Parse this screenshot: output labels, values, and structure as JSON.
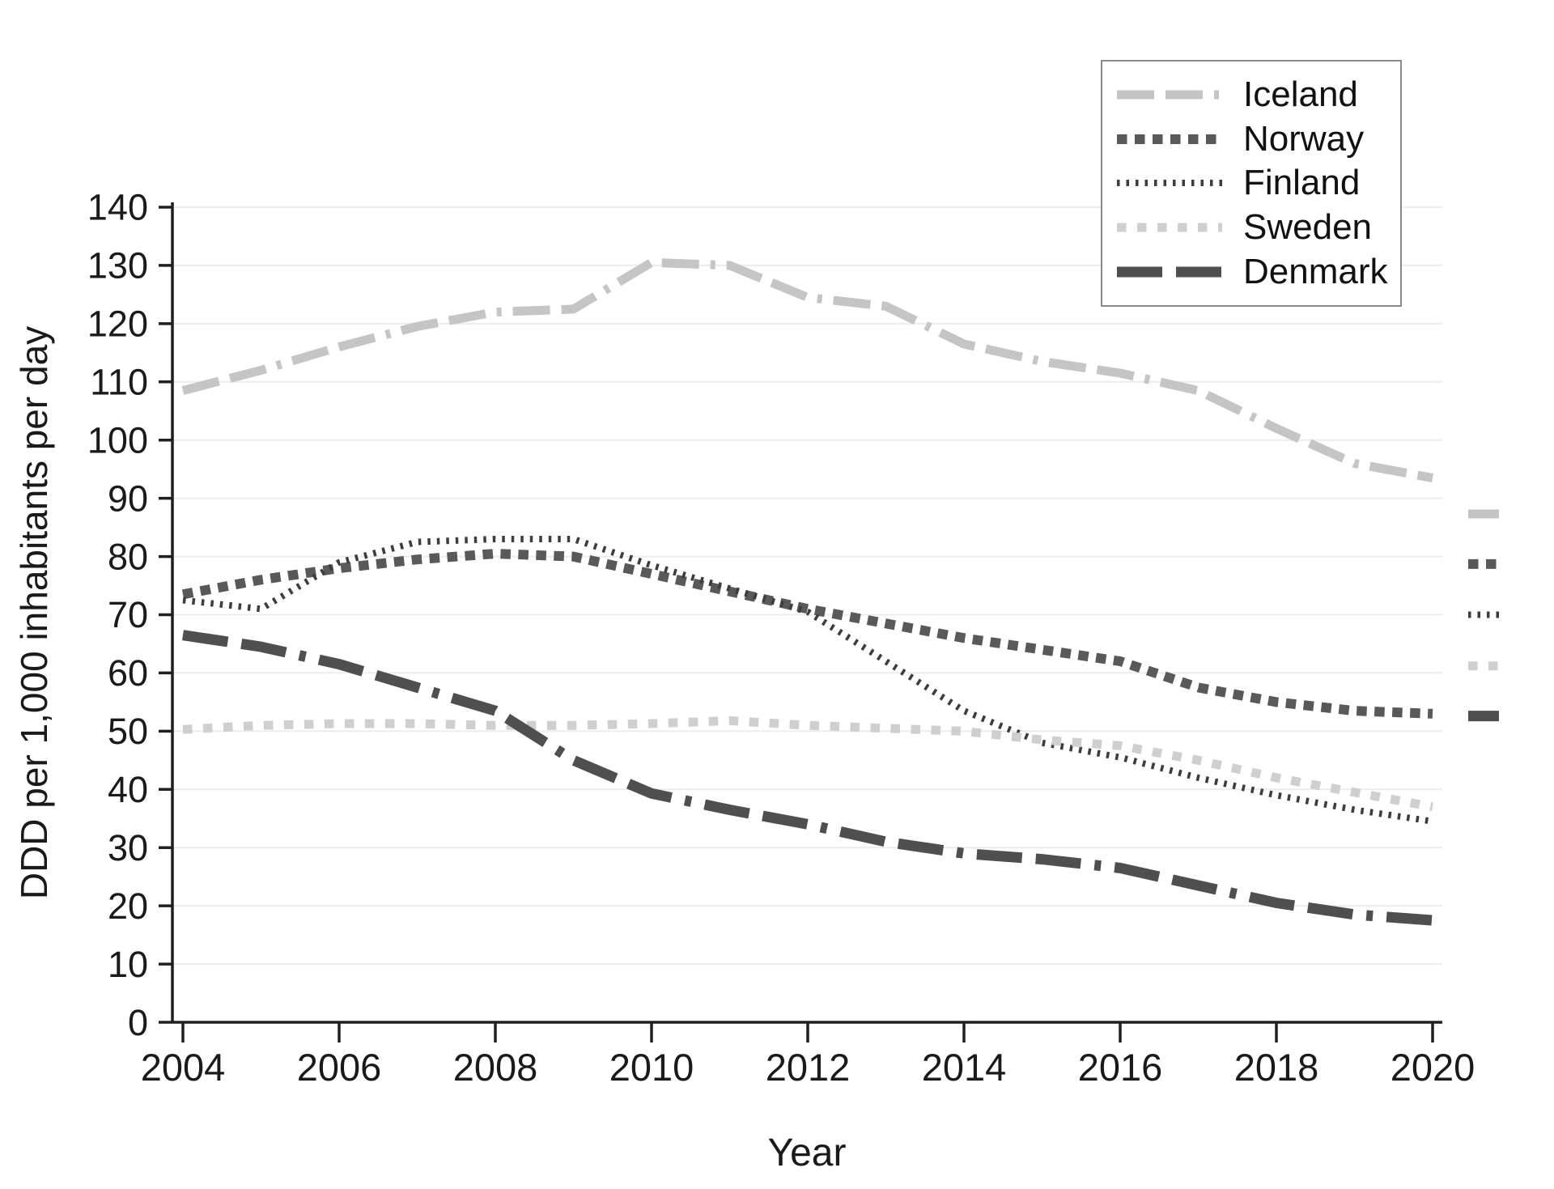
{
  "chart_data": {
    "type": "line",
    "title": "",
    "xlabel": "Year",
    "ylabel": "DDD per 1,000 inhabitants per day",
    "x": [
      2004,
      2005,
      2006,
      2007,
      2008,
      2009,
      2010,
      2011,
      2012,
      2013,
      2014,
      2015,
      2016,
      2017,
      2018,
      2019,
      2020
    ],
    "xticks": [
      2004,
      2006,
      2008,
      2010,
      2012,
      2014,
      2016,
      2018,
      2020
    ],
    "yticks": [
      0,
      10,
      20,
      30,
      40,
      50,
      60,
      70,
      80,
      90,
      100,
      110,
      120,
      130,
      140
    ],
    "xlim": [
      2004,
      2020
    ],
    "ylim": [
      0,
      140
    ],
    "grid": true,
    "legend_position": "top-right",
    "series": [
      {
        "name": "Iceland",
        "color": "#c5c5c5",
        "dash_style": "long-dash-light",
        "values": [
          108.5,
          112,
          116,
          119.5,
          122,
          122.5,
          130.5,
          130,
          124.5,
          123,
          116.5,
          113.5,
          111.5,
          108.5,
          102,
          96,
          93.5
        ]
      },
      {
        "name": "Norway",
        "color": "#595959",
        "dash_style": "square-dot-dark",
        "values": [
          73.5,
          76,
          78,
          79.5,
          80.5,
          80,
          77,
          74,
          71,
          68.5,
          66,
          64,
          62,
          57.5,
          55,
          53.5,
          53
        ]
      },
      {
        "name": "Finland",
        "color": "#3d3d3d",
        "dash_style": "dense-tick",
        "values": [
          72.5,
          71,
          79,
          82.5,
          83,
          83,
          78.5,
          74.5,
          70.5,
          62,
          53.5,
          48,
          45.5,
          42,
          39,
          36.5,
          34.5
        ]
      },
      {
        "name": "Sweden",
        "color": "#cfcfcf",
        "dash_style": "square-dot-light",
        "values": [
          50.3,
          51,
          51.3,
          51.3,
          51,
          51,
          51.3,
          51.8,
          51,
          50.5,
          50,
          48.5,
          47.5,
          45,
          42,
          39.5,
          37
        ]
      },
      {
        "name": "Denmark",
        "color": "#4f4f4f",
        "dash_style": "long-dash-dark",
        "values": [
          66.5,
          64.5,
          61.5,
          57.5,
          53.5,
          45,
          39.3,
          36.5,
          34,
          31,
          29,
          28,
          26.5,
          23.5,
          20.5,
          18.5,
          17.5
        ]
      }
    ],
    "right_edge_key_marks": {
      "description": "small orphan legend key samples outside right plot edge, top to bottom in series order",
      "values_at": [
        87.3,
        78.7,
        70.0,
        61.2,
        52.6
      ]
    }
  },
  "axes": {
    "grid_color": "#ececec",
    "axis_color": "#1f1f1f"
  },
  "legend": {
    "entries": [
      "Iceland",
      "Norway",
      "Finland",
      "Sweden",
      "Denmark"
    ]
  }
}
